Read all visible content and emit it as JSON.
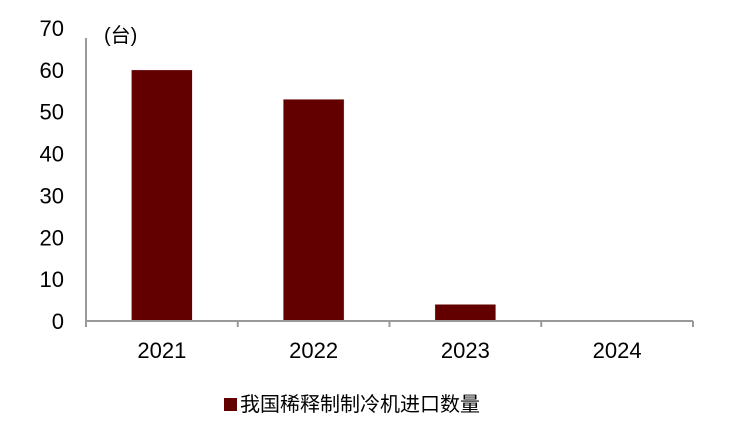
{
  "chart_data": {
    "type": "bar",
    "categories": [
      "2021",
      "2022",
      "2023",
      "2024"
    ],
    "series": [
      {
        "name": "我国稀释制制冷机进口数量",
        "values": [
          60,
          53,
          4,
          0
        ],
        "color": "#620000"
      }
    ],
    "unit_label": "(台)",
    "ylim": [
      0,
      70
    ],
    "yticks": [
      0,
      10,
      20,
      30,
      40,
      50,
      60,
      70
    ],
    "grid": false,
    "legend_position": "bottom"
  }
}
